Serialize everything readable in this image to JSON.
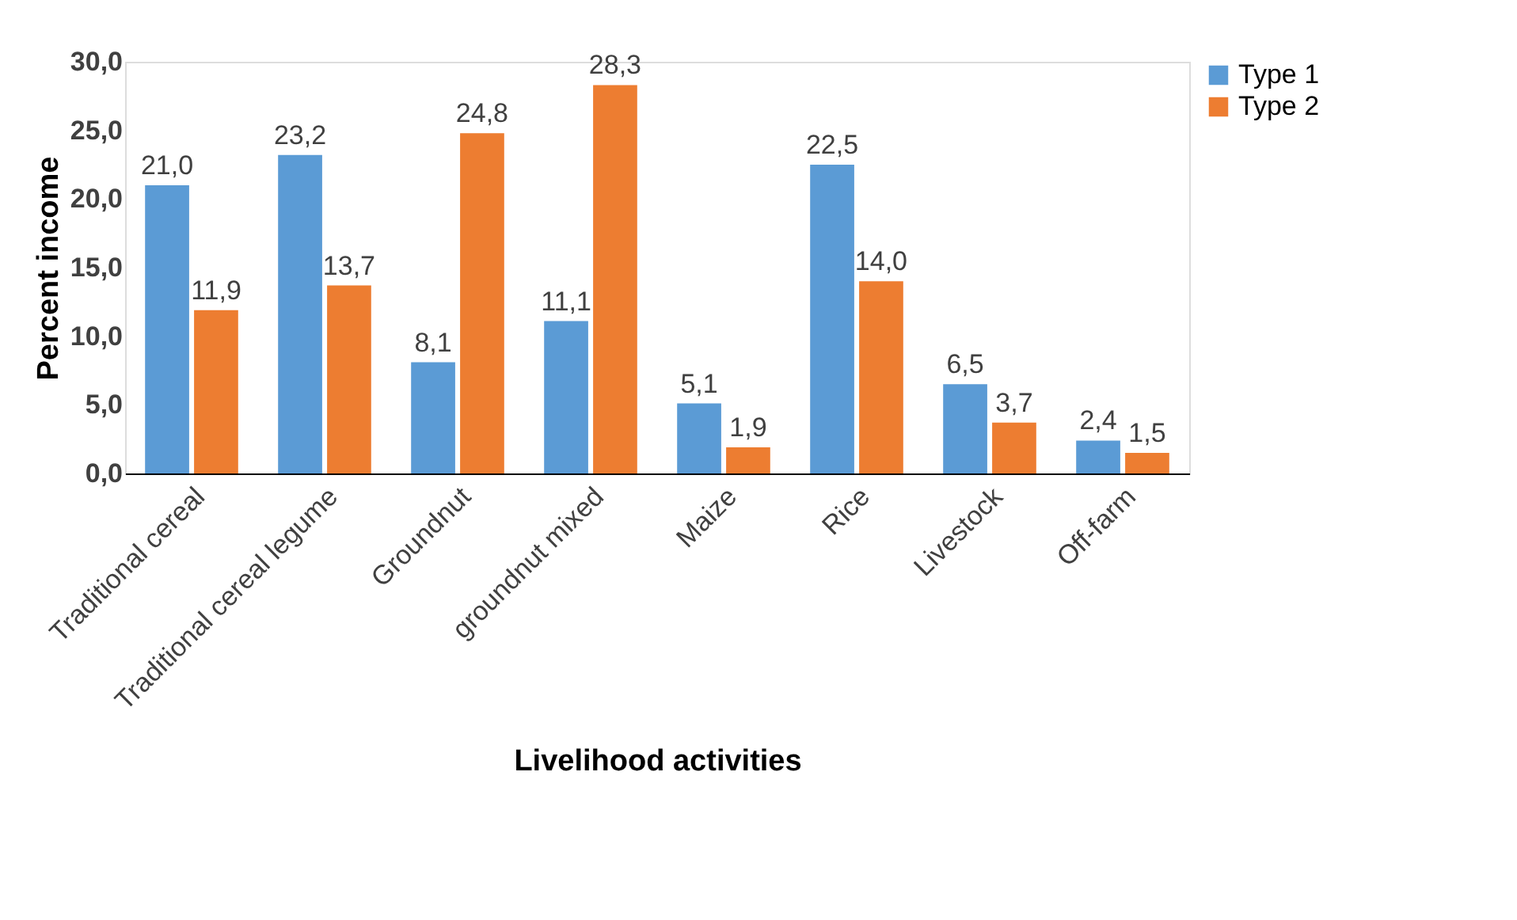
{
  "chart_data": {
    "type": "bar",
    "xlabel": "Livelihood activities",
    "ylabel": "Percent income",
    "categories": [
      "Traditional cereal",
      "Traditional cereal legume",
      "Groundnut",
      "groundnut mixed",
      "Maize",
      "Rice",
      "Livestock",
      "Off-farm"
    ],
    "series": [
      {
        "name": "Type 1",
        "color": "#5b9bd5",
        "values": [
          21.0,
          23.2,
          8.1,
          11.1,
          5.1,
          22.5,
          6.5,
          2.4
        ],
        "value_labels": [
          "21,0",
          "23,2",
          "8,1",
          "11,1",
          "5,1",
          "22,5",
          "6,5",
          "2,4"
        ]
      },
      {
        "name": "Type 2",
        "color": "#ed7d31",
        "values": [
          11.9,
          13.7,
          24.8,
          28.3,
          1.9,
          14.0,
          3.7,
          1.5
        ],
        "value_labels": [
          "11,9",
          "13,7",
          "24,8",
          "28,3",
          "1,9",
          "14,0",
          "3,7",
          "1,5"
        ]
      }
    ],
    "ylim": [
      0,
      30
    ],
    "yticks": [
      {
        "value": 0,
        "label": "0,0"
      },
      {
        "value": 5,
        "label": "5,0"
      },
      {
        "value": 10,
        "label": "10,0"
      },
      {
        "value": 15,
        "label": "15,0"
      },
      {
        "value": 20,
        "label": "20,0"
      },
      {
        "value": 25,
        "label": "25,0"
      },
      {
        "value": 30,
        "label": "30,0"
      }
    ],
    "legend": "right"
  }
}
